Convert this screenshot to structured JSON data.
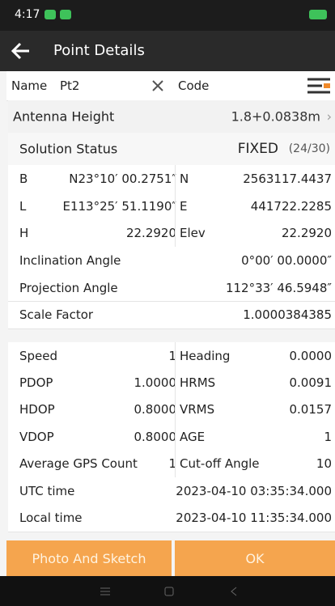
{
  "status_bar": {
    "time": "4:17"
  },
  "app_bar": {
    "title": "Point Details"
  },
  "name_row": {
    "name_label": "Name",
    "name_value": "Pt2",
    "code_label": "Code"
  },
  "antenna": {
    "label": "Antenna Height",
    "value": "1.8+0.0838m"
  },
  "solution": {
    "label": "Solution Status",
    "value": "FIXED",
    "count": "(24/30)"
  },
  "position_rows": [
    {
      "left": {
        "label": "B",
        "value": "N23°10′ 00.2751″"
      },
      "right": {
        "label": "N",
        "value": "2563117.4437"
      }
    },
    {
      "left": {
        "label": "L",
        "value": "E113°25′ 51.1190″"
      },
      "right": {
        "label": "E",
        "value": "441722.2285"
      }
    },
    {
      "left": {
        "label": "H",
        "value": "22.2920"
      },
      "right": {
        "label": "Elev",
        "value": "22.2920"
      }
    },
    {
      "label": "Inclination Angle",
      "value": "0°00′ 00.0000″"
    },
    {
      "label": "Projection Angle",
      "value": "112°33′ 46.5948″"
    },
    {
      "label": "Scale Factor",
      "value": "1.0000384385"
    }
  ],
  "quality_rows": [
    {
      "left": {
        "label": "Speed",
        "value": "1"
      },
      "right": {
        "label": "Heading",
        "value": "0.0000"
      }
    },
    {
      "left": {
        "label": "PDOP",
        "value": "1.0000"
      },
      "right": {
        "label": "HRMS",
        "value": "0.0091"
      }
    },
    {
      "left": {
        "label": "HDOP",
        "value": "0.8000"
      },
      "right": {
        "label": "VRMS",
        "value": "0.0157"
      }
    },
    {
      "left": {
        "label": "VDOP",
        "value": "0.8000"
      },
      "right": {
        "label": "AGE",
        "value": "1"
      }
    },
    {
      "left": {
        "label": "Average GPS Count",
        "value": "1"
      },
      "right": {
        "label": "Cut-off Angle",
        "value": "10"
      }
    },
    {
      "label": "UTC time",
      "value": "2023-04-10 03:35:34.000"
    },
    {
      "label": "Local time",
      "value": "2023-04-10 11:35:34.000"
    }
  ],
  "buttons": {
    "photo": "Photo And Sketch",
    "ok": "OK"
  }
}
